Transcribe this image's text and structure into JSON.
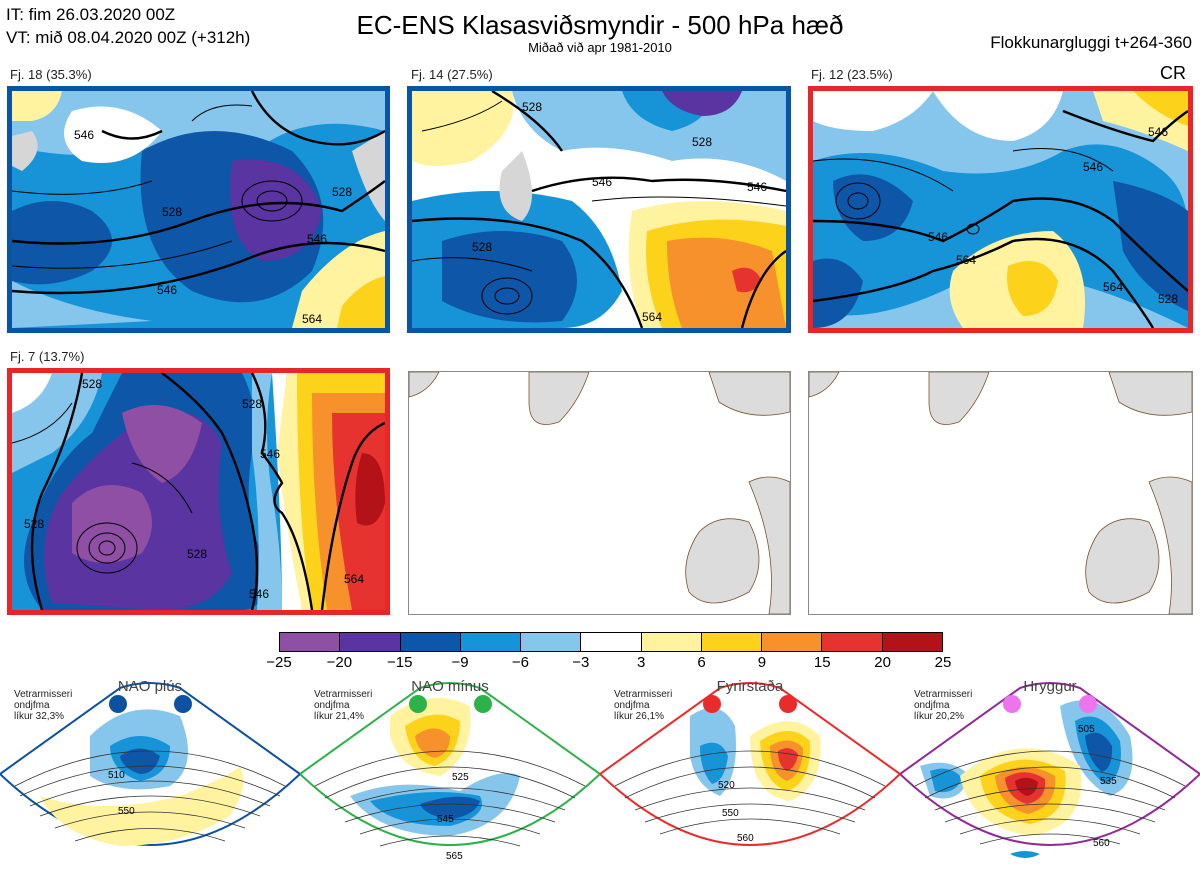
{
  "header": {
    "it_line": "IT: fim 26.03.2020 00Z",
    "vt_line": "VT: mið 08.04.2020 00Z  (+312h)",
    "title": "EC-ENS Klasasviðsmyndir - 500 hPa hæð",
    "subtitle": "Miðað við apr 1981-2010",
    "window": "Flokkunargluggi t+264-360",
    "cr": "CR"
  },
  "clusters": [
    {
      "label": "Fj. 18 (35.3%)",
      "frame": "#0a55a3",
      "contours": [
        "546",
        "528",
        "546",
        "546",
        "528",
        "564"
      ]
    },
    {
      "label": "Fj. 14 (27.5%)",
      "frame": "#0a55a3",
      "contours": [
        "528",
        "546",
        "546",
        "528",
        "564",
        "528"
      ]
    },
    {
      "label": "Fj. 12 (23.5%)",
      "frame": "#e8262a",
      "contours": [
        "546",
        "546",
        "564",
        "564",
        "546",
        "528"
      ]
    },
    {
      "label": "Fj. 7 (13.7%)",
      "frame": "#e8262a",
      "contours": [
        "528",
        "528",
        "528",
        "528",
        "546",
        "546",
        "564"
      ]
    }
  ],
  "colorbar": {
    "ticks": [
      "−25",
      "−20",
      "−15",
      "−9",
      "−6",
      "−3",
      "3",
      "6",
      "9",
      "15",
      "20",
      "25"
    ],
    "colors": [
      "#8e4fa4",
      "#5a34a0",
      "#0e56a8",
      "#1793d8",
      "#86c6ec",
      "#ffffff",
      "#fff3a0",
      "#fdd21a",
      "#f6912c",
      "#e73330",
      "#b31218"
    ]
  },
  "regimes": [
    {
      "name": "NAO plús",
      "line1": "Vetrarmisseri",
      "line2": "ondjfma",
      "line3": "líkur 32,3%",
      "dot_color": "#0c52a0",
      "frame": "#0c52a0",
      "contours": [
        "510",
        "550"
      ]
    },
    {
      "name": "NAO mínus",
      "line1": "Vetrarmisseri",
      "line2": "ondjfma",
      "line3": "líkur 21,4%",
      "dot_color": "#2db14a",
      "frame": "#2db14a",
      "contours": [
        "525",
        "545",
        "565"
      ]
    },
    {
      "name": "Fyrirstaða",
      "line1": "Vetrarmisseri",
      "line2": "ondjfma",
      "line3": "líkur 26,1%",
      "dot_color": "#ea2b2b",
      "frame": "#ea2b2b",
      "contours": [
        "520",
        "550",
        "560"
      ]
    },
    {
      "name": "Hryggur",
      "line1": "Vetrarmisseri",
      "line2": "ondjfma",
      "line3": "líkur 20,2%",
      "dot_color": "#ee74ee",
      "frame": "#8f2a97",
      "contours": [
        "505",
        "535",
        "560"
      ]
    }
  ]
}
